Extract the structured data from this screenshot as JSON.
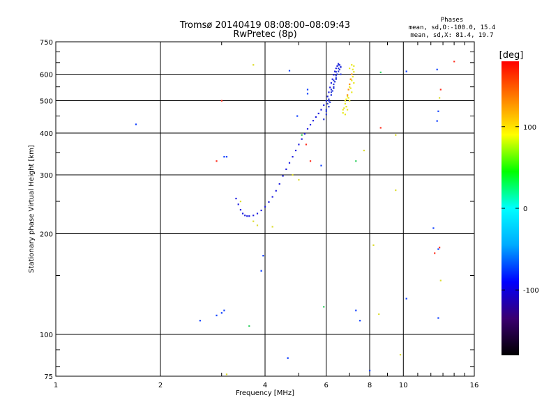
{
  "chart_data": {
    "type": "scatter",
    "title": "Tromsø 20140419 08:08:00–08:09:43",
    "subtitle": "RwPretec (8p)",
    "xlabel": "Frequency [MHz]",
    "ylabel": "Stationary phase Virtual Height [km]",
    "xscale": "log2",
    "yscale": "log",
    "xlim": [
      1,
      16
    ],
    "ylim": [
      75,
      750
    ],
    "xticks": [
      1,
      2,
      4,
      6,
      8,
      10,
      16
    ],
    "yticks": [
      75,
      100,
      200,
      300,
      400,
      500,
      600,
      750
    ],
    "grid": true,
    "annotation": {
      "header": "Phases",
      "line1": "mean, sd,O:-100.0, 15.4",
      "line2": "mean, sd,X:  81.4, 19.7"
    },
    "colorbar": {
      "label": "[deg]",
      "range": [
        -180,
        180
      ],
      "ticks": [
        100,
        0,
        -100
      ],
      "colors": [
        "#000000",
        "#3a0070",
        "#0000ff",
        "#00aaff",
        "#00ffff",
        "#00ff00",
        "#ffff00",
        "#ff8000",
        "#ff0000"
      ]
    },
    "series": [
      {
        "name": "O-mode trace",
        "color": "#2020e0",
        "x": [
          3.3,
          3.35,
          3.4,
          3.45,
          3.5,
          3.55,
          3.6,
          3.7,
          3.8,
          3.9,
          4.0,
          4.1,
          4.2,
          4.3,
          4.4,
          4.5,
          4.6,
          4.7,
          4.8,
          4.9,
          5.0,
          5.1,
          5.2,
          5.3,
          5.4,
          5.5,
          5.6,
          5.7,
          5.8,
          5.9,
          6.0,
          6.05,
          6.1,
          6.15,
          6.2,
          6.25,
          6.3,
          6.35,
          6.4,
          6.45,
          6.5,
          6.55,
          6.6
        ],
        "y": [
          255,
          245,
          236,
          230,
          227,
          226,
          226,
          227,
          230,
          235,
          241,
          249,
          258,
          269,
          282,
          298,
          312,
          326,
          340,
          355,
          370,
          384,
          398,
          412,
          424,
          436,
          447,
          458,
          470,
          485,
          500,
          515,
          530,
          548,
          565,
          580,
          598,
          612,
          625,
          635,
          645,
          640,
          630
        ]
      },
      {
        "name": "O-mode scatter",
        "color": "#2a3ad8",
        "x": [
          6.0,
          6.1,
          6.2,
          6.3,
          6.4,
          6.5,
          6.6,
          6.1,
          6.2,
          6.3,
          6.4,
          6.5,
          6.0,
          6.15,
          6.25,
          6.35,
          6.45,
          6.55,
          6.05,
          6.2,
          6.3,
          6.4,
          5.9,
          6.0,
          6.1,
          6.2,
          6.3,
          6.4,
          6.5,
          6.6
        ],
        "y": [
          470,
          505,
          540,
          575,
          610,
          640,
          632,
          480,
          520,
          560,
          595,
          625,
          455,
          495,
          535,
          570,
          600,
          620,
          490,
          530,
          550,
          585,
          440,
          465,
          500,
          520,
          545,
          580,
          612,
          600
        ]
      },
      {
        "name": "X-mode trace",
        "color": "#e8e820",
        "x": [
          6.7,
          6.75,
          6.8,
          6.85,
          6.9,
          6.95,
          7.0,
          7.05,
          7.1,
          7.15,
          7.2,
          6.8,
          6.9,
          7.0,
          7.1,
          7.2,
          6.85,
          6.95,
          7.05,
          7.15,
          6.7,
          6.8,
          6.9,
          7.0,
          7.1,
          7.2,
          7.0,
          7.1
        ],
        "y": [
          460,
          475,
          490,
          505,
          520,
          540,
          560,
          580,
          600,
          620,
          635,
          455,
          470,
          500,
          530,
          565,
          480,
          510,
          545,
          590,
          470,
          500,
          515,
          550,
          575,
          610,
          625,
          640
        ]
      },
      {
        "name": "X-mode orange",
        "color": "#ff9020",
        "x": [
          6.9,
          7.0,
          7.1,
          7.05,
          6.95
        ],
        "y": [
          520,
          560,
          600,
          580,
          540
        ]
      },
      {
        "name": "Noise blue",
        "color": "#1040ff",
        "x": [
          1.7,
          2.6,
          2.9,
          3.0,
          3.05,
          3.05,
          3.95,
          3.9,
          4.65,
          4.7,
          7.3,
          7.5,
          8.0,
          12.2,
          12.5,
          12.5,
          12.6,
          12.6,
          12.6,
          10.2,
          10.2,
          5.3,
          5.3,
          5.8,
          4.95,
          3.1
        ],
        "y": [
          425,
          110,
          114,
          116,
          118,
          340,
          172,
          155,
          85,
          615,
          118,
          110,
          78,
          208,
          620,
          435,
          465,
          112,
          180,
          128,
          612,
          525,
          540,
          320,
          450,
          340
        ]
      },
      {
        "name": "Noise cyan-green",
        "color": "#30d060",
        "x": [
          3.6,
          5.9,
          8.6,
          5.1,
          7.3
        ],
        "y": [
          106,
          121,
          608,
          395,
          330
        ]
      },
      {
        "name": "Noise yellow",
        "color": "#dddd30",
        "x": [
          3.8,
          3.7,
          3.4,
          4.2,
          4.8,
          5.0,
          7.7,
          8.2,
          8.5,
          9.5,
          9.5,
          9.8,
          12.8,
          12.7,
          3.1,
          3.7
        ],
        "y": [
          212,
          218,
          250,
          210,
          300,
          290,
          355,
          185,
          115,
          395,
          270,
          87,
          145,
          510,
          76,
          640
        ]
      },
      {
        "name": "Noise red-orange",
        "color": "#ff3020",
        "x": [
          2.9,
          3.0,
          8.6,
          12.8,
          12.7,
          14.0,
          12.3,
          5.25,
          5.4
        ],
        "y": [
          330,
          500,
          415,
          540,
          182,
          655,
          175,
          370,
          330
        ]
      }
    ]
  }
}
